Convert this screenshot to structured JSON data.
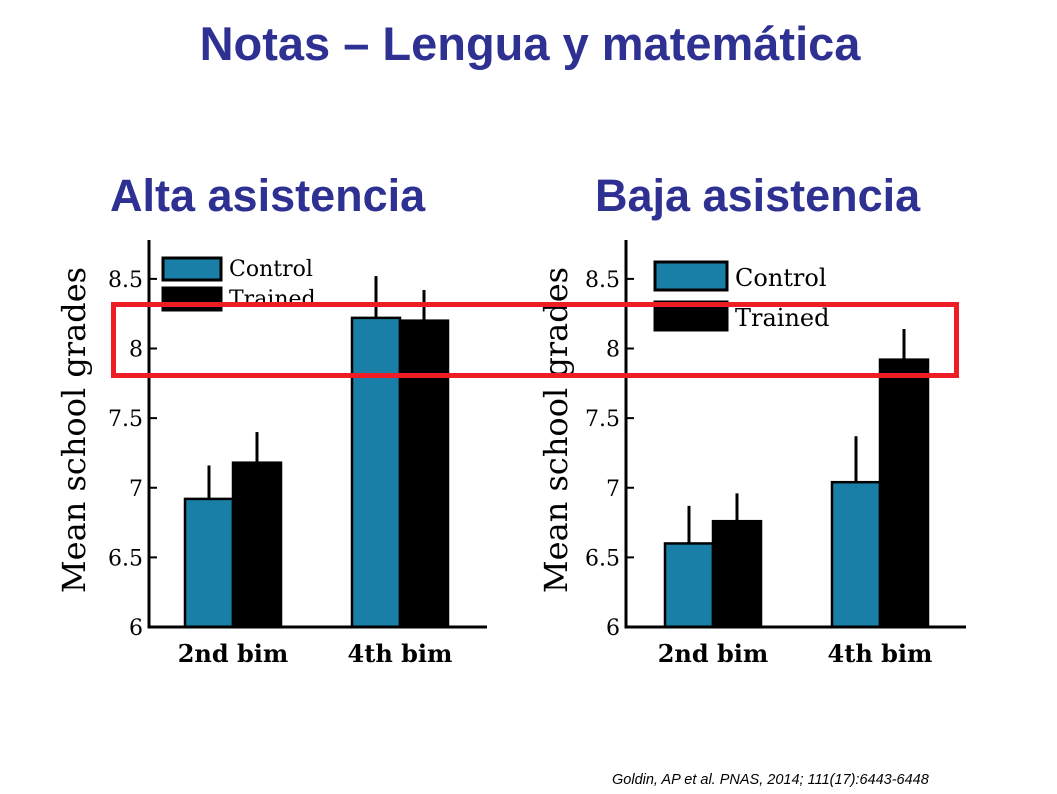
{
  "slide": {
    "title": "Notas – Lengua y matemática",
    "citation": "Goldin, AP et al. PNAS, 2014; 111(17):6443-6448"
  },
  "colors": {
    "title": "#2e3192",
    "control": "#1a7fa6",
    "trained": "#000000",
    "highlight": "#ee1c25"
  },
  "chart_data": [
    {
      "type": "bar",
      "title": "Alta asistencia",
      "ylabel": "Mean school grades",
      "categories": [
        "2nd bim",
        "4th bim"
      ],
      "ylim": [
        6,
        8.65
      ],
      "yticks": [
        "6",
        "6.5",
        "7",
        "7.5",
        "8",
        "8.5"
      ],
      "legend": "top-left",
      "series": [
        {
          "name": "Control",
          "values": [
            6.92,
            8.22
          ],
          "errors": [
            0.24,
            0.3
          ]
        },
        {
          "name": "Trained",
          "values": [
            7.18,
            8.2
          ],
          "errors": [
            0.22,
            0.22
          ]
        }
      ]
    },
    {
      "type": "bar",
      "title": "Baja asistencia",
      "ylabel": "Mean school grades",
      "categories": [
        "2nd bim",
        "4th bim"
      ],
      "ylim": [
        6,
        8.65
      ],
      "yticks": [
        "6",
        "6.5",
        "7",
        "7.5",
        "8",
        "8.5"
      ],
      "legend": "top-left",
      "series": [
        {
          "name": "Control",
          "values": [
            6.6,
            7.04
          ],
          "errors": [
            0.27,
            0.33
          ]
        },
        {
          "name": "Trained",
          "values": [
            6.76,
            7.92
          ],
          "errors": [
            0.2,
            0.22
          ]
        }
      ]
    }
  ]
}
